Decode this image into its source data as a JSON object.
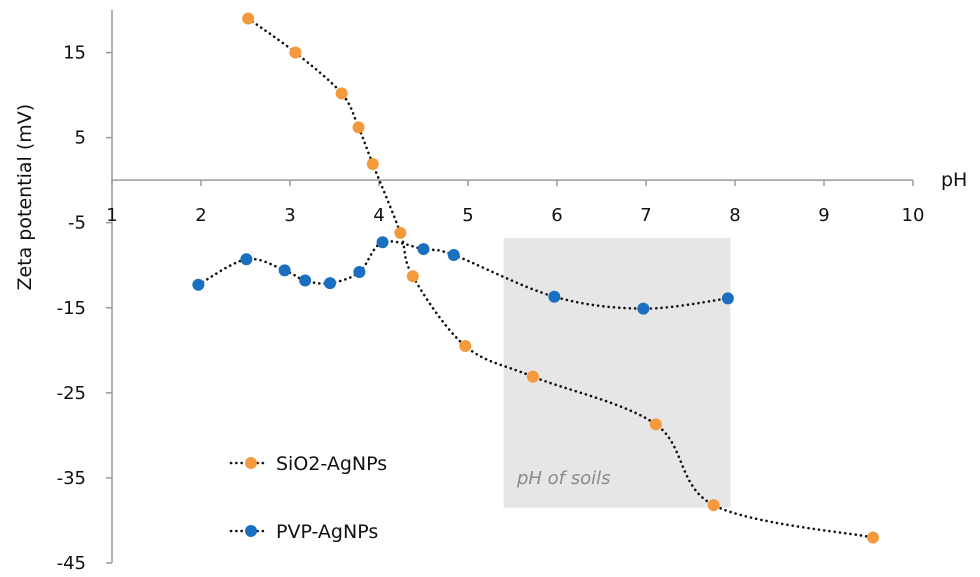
{
  "chart_data": {
    "type": "line",
    "title": "",
    "xlabel": "pH",
    "ylabel": "Zeta potential (mV)",
    "xlim": [
      1,
      10
    ],
    "ylim": [
      -45,
      20
    ],
    "x_ticks": [
      1,
      2,
      3,
      4,
      5,
      6,
      7,
      8,
      9,
      10
    ],
    "x_tick_labels": [
      "1",
      "2",
      "3",
      "4",
      "5",
      "6",
      "7",
      "8",
      "9",
      "10"
    ],
    "y_ticks": [
      15,
      5,
      -5,
      -15,
      -25,
      -35,
      -45
    ],
    "y_tick_labels": [
      "15",
      "5",
      "-5",
      "-15",
      "-25",
      "-35",
      "-45"
    ],
    "x_axis_crosses_y_at": 0,
    "grid": false,
    "legend_position": "bottom-left",
    "band": {
      "x_from": 5.4,
      "x_to": 7.95,
      "label": "pH of soils",
      "color": "#e6e6e6"
    },
    "series": [
      {
        "name": "SiO2-AgNPs",
        "color": "#f59a3c",
        "x": [
          2.53,
          3.06,
          3.58,
          3.77,
          3.93,
          4.24,
          4.38,
          4.97,
          5.73,
          7.11,
          7.76,
          9.55
        ],
        "y": [
          19,
          15,
          10.2,
          6.2,
          1.9,
          -6.2,
          -11.3,
          -19.5,
          -23.1,
          -28.7,
          -38.2,
          -42
        ]
      },
      {
        "name": "PVP-AgNPs",
        "color": "#1b6fc0",
        "x": [
          1.97,
          2.51,
          2.94,
          3.17,
          3.45,
          3.78,
          4.04,
          4.5,
          4.84,
          5.97,
          6.97,
          7.92
        ],
        "y": [
          -12.3,
          -9.3,
          -10.6,
          -11.8,
          -12.1,
          -10.8,
          -7.3,
          -8.1,
          -8.8,
          -13.7,
          -15.1,
          -13.9
        ]
      }
    ]
  }
}
